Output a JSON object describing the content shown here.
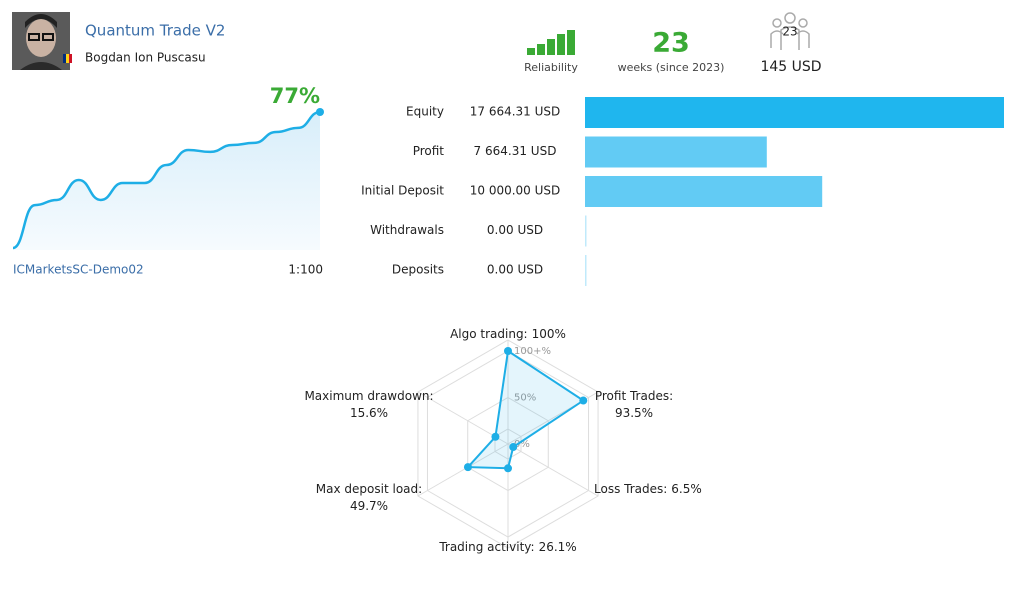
{
  "header": {
    "title": "Quantum Trade V2",
    "author": "Bogdan Ion Puscasu"
  },
  "stats": {
    "reliability_label": "Reliability",
    "weeks": "23",
    "weeks_label": "weeks (since 2023)",
    "subscribers": "23",
    "price": "145 USD"
  },
  "growth": {
    "value": 77,
    "value_label": "77%",
    "account": "ICMarketsSC-Demo02",
    "leverage": "1:100",
    "chart": {
      "type": "line",
      "color": "#1eaee6",
      "ylim": [
        0,
        77
      ],
      "values": [
        0,
        24.3,
        27.2,
        38.5,
        27.2,
        36.8,
        36.8,
        47.0,
        55.5,
        54.4,
        58.3,
        59.5,
        65.7,
        68.0,
        77
      ]
    }
  },
  "balance": {
    "type": "bar",
    "rows": [
      {
        "label": "Equity",
        "value": 17664.31,
        "value_label": "17 664.31 USD",
        "color": "#1fb6ee"
      },
      {
        "label": "Profit",
        "value": 7664.31,
        "value_label": "7 664.31 USD",
        "color": "#62cbf4"
      },
      {
        "label": "Initial Deposit",
        "value": 10000,
        "value_label": "10 000.00 USD",
        "color": "#62cbf4"
      },
      {
        "label": "Withdrawals",
        "value": 0,
        "value_label": "0.00 USD",
        "color": "#62cbf4"
      },
      {
        "label": "Deposits",
        "value": 0,
        "value_label": "0.00 USD",
        "color": "#62cbf4"
      }
    ]
  },
  "radar": {
    "type": "radar",
    "color": "#1eaee6",
    "ticks": [
      {
        "value": 100,
        "label": "100+%"
      },
      {
        "value": 50,
        "label": "50%"
      },
      {
        "value": 0,
        "label": "0%"
      }
    ],
    "axes": [
      {
        "name": "Algo trading:",
        "value": 100,
        "value_label": "100%"
      },
      {
        "name": "Profit Trades:",
        "value": 93.5,
        "value_label": "93.5%"
      },
      {
        "name": "Loss Trades:",
        "value": 6.5,
        "value_label": "6.5%"
      },
      {
        "name": "Trading activity:",
        "value": 26.1,
        "value_label": "26.1%"
      },
      {
        "name": "Max deposit load:",
        "value": 49.7,
        "value_label": "49.7%"
      },
      {
        "name": "Maximum drawdown:",
        "value": 15.6,
        "value_label": "15.6%"
      }
    ]
  }
}
